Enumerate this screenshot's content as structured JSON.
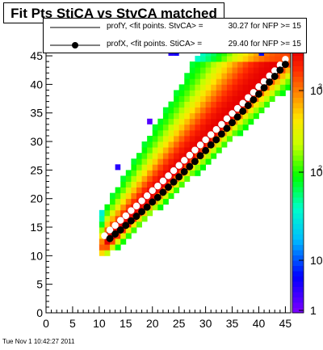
{
  "title": "Fit Pts StiCA vs StvCA matched",
  "timestamp": "Tue Nov  1 10:42:27 2011",
  "legend": [
    {
      "name": "profY, <fit points. StvCA> =",
      "value": "30.27 for NFP >= 15",
      "style": "line"
    },
    {
      "name": "profX, <fit points. StiCA> =",
      "value": "29.40 for NFP >= 15",
      "style": "line-marker"
    }
  ],
  "chart_data": {
    "type": "heatmap",
    "xlim": [
      0,
      46
    ],
    "ylim": [
      0,
      46
    ],
    "x_ticks": [
      0,
      5,
      10,
      15,
      20,
      25,
      30,
      35,
      40,
      45
    ],
    "y_ticks": [
      0,
      5,
      10,
      15,
      20,
      25,
      30,
      35,
      40,
      45
    ],
    "z_scale": "log",
    "z_ticks": [
      "1",
      "10",
      "10",
      "10"
    ],
    "z_tick_exponents": [
      "",
      "",
      "2",
      "3"
    ],
    "grid": false,
    "legend_position": "top",
    "series": [
      {
        "name": "profY",
        "x": [
          11,
          12,
          13,
          14,
          15,
          16,
          17,
          18,
          19,
          20,
          21,
          22,
          23,
          24,
          25,
          26,
          27,
          28,
          29,
          30,
          31,
          32,
          33,
          34,
          35,
          36,
          37,
          38,
          39,
          40,
          41,
          42,
          43,
          44,
          45
        ],
        "y": [
          13.5,
          14.5,
          15.3,
          16.2,
          17,
          17.9,
          18.7,
          19.6,
          20.5,
          21.4,
          22.2,
          23.1,
          24,
          24.9,
          25.8,
          26.7,
          27.6,
          28.5,
          29.4,
          30.3,
          31.2,
          32.1,
          33,
          34,
          34.9,
          35.8,
          36.7,
          37.7,
          38.6,
          39.6,
          40.5,
          41.5,
          42.4,
          43.4,
          44.4
        ],
        "color": "#ffffff"
      },
      {
        "name": "profX",
        "x": [
          12,
          13,
          14,
          15,
          16,
          17,
          18,
          19,
          20,
          21,
          22,
          23,
          24,
          25,
          26,
          27,
          28,
          29,
          30,
          31,
          32,
          33,
          34,
          35,
          36,
          37,
          38,
          39,
          40,
          41,
          42,
          43,
          44,
          45
        ],
        "y": [
          13,
          13.8,
          14.5,
          15.3,
          16.1,
          16.9,
          17.7,
          18.5,
          19.4,
          20.2,
          21.1,
          22,
          22.9,
          23.8,
          24.7,
          25.6,
          26.5,
          27.5,
          28.4,
          29.4,
          30.3,
          31.3,
          32.3,
          33.3,
          34.3,
          35.3,
          36.3,
          37.3,
          38.3,
          39.4,
          40.4,
          41.4,
          42.5,
          43.5
        ],
        "color": "#000000"
      }
    ]
  }
}
